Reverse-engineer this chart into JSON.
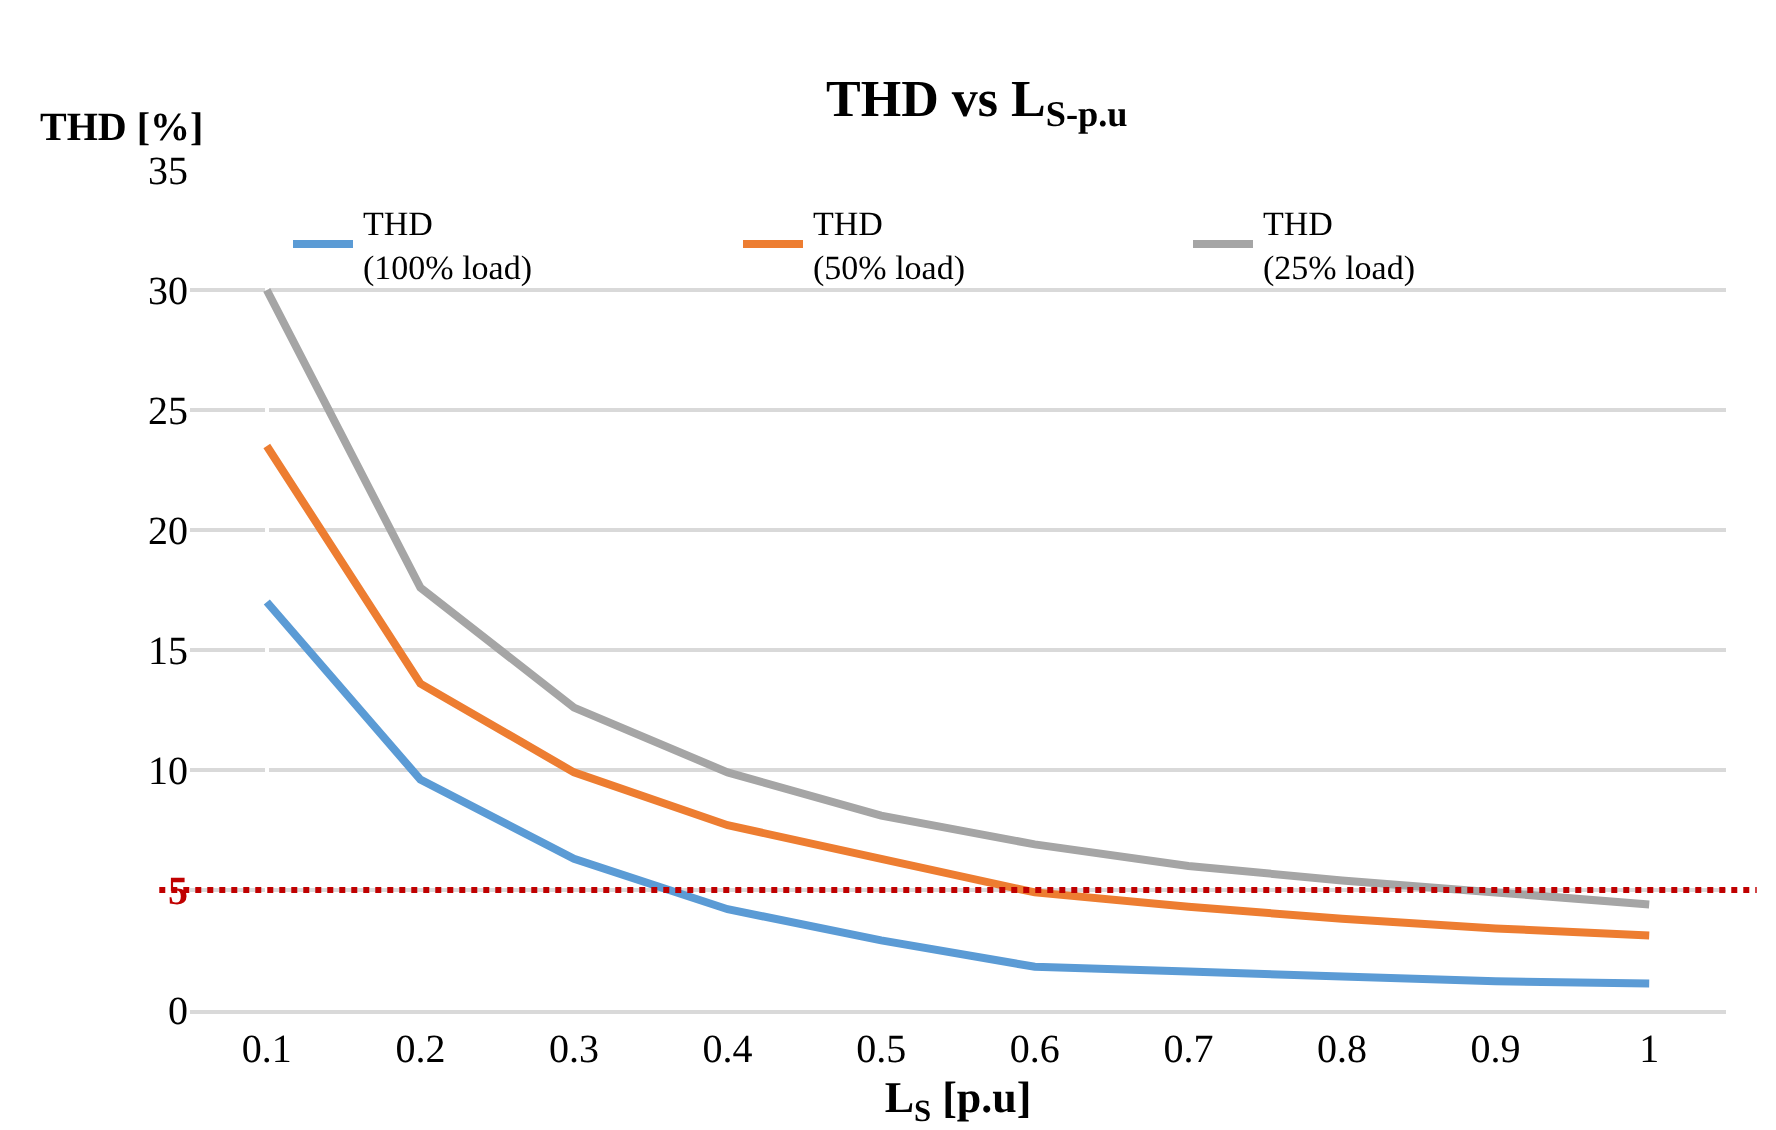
{
  "chart_data": {
    "type": "line",
    "title": "THD vs L$_{S-p.u}$",
    "xlabel": "L$_{S}$ [p.u]",
    "ylabel": "THD [%]",
    "categories": [
      "0.1",
      "0.2",
      "0.3",
      "0.4",
      "0.5",
      "0.6",
      "0.7",
      "0.8",
      "0.9",
      "1"
    ],
    "series": [
      {
        "name": "THD\n(100% load)",
        "color": "#5b9bd5",
        "values": [
          17,
          9.6,
          6.3,
          4.2,
          2.9,
          1.8,
          1.6,
          1.4,
          1.2,
          1.1
        ]
      },
      {
        "name": "THD\n(50% load)",
        "color": "#ed7d31",
        "values": [
          23.5,
          13.6,
          9.9,
          7.7,
          6.3,
          4.9,
          4.3,
          3.8,
          3.4,
          3.1
        ]
      },
      {
        "name": "THD\n(25% load)",
        "color": "#a5a5a5",
        "values": [
          30,
          17.6,
          12.6,
          9.9,
          8.1,
          6.9,
          6.0,
          5.4,
          4.9,
          4.4
        ]
      }
    ],
    "ylim": [
      0,
      35
    ],
    "yticks": [
      0,
      5,
      10,
      15,
      20,
      25,
      30,
      35
    ],
    "grid": "y",
    "legend": "top",
    "marker": "none",
    "line_style": "solid",
    "ref_lines": [
      {
        "axis": "y",
        "value": 5,
        "color": "#c00000",
        "line_style": "dotted"
      }
    ]
  }
}
